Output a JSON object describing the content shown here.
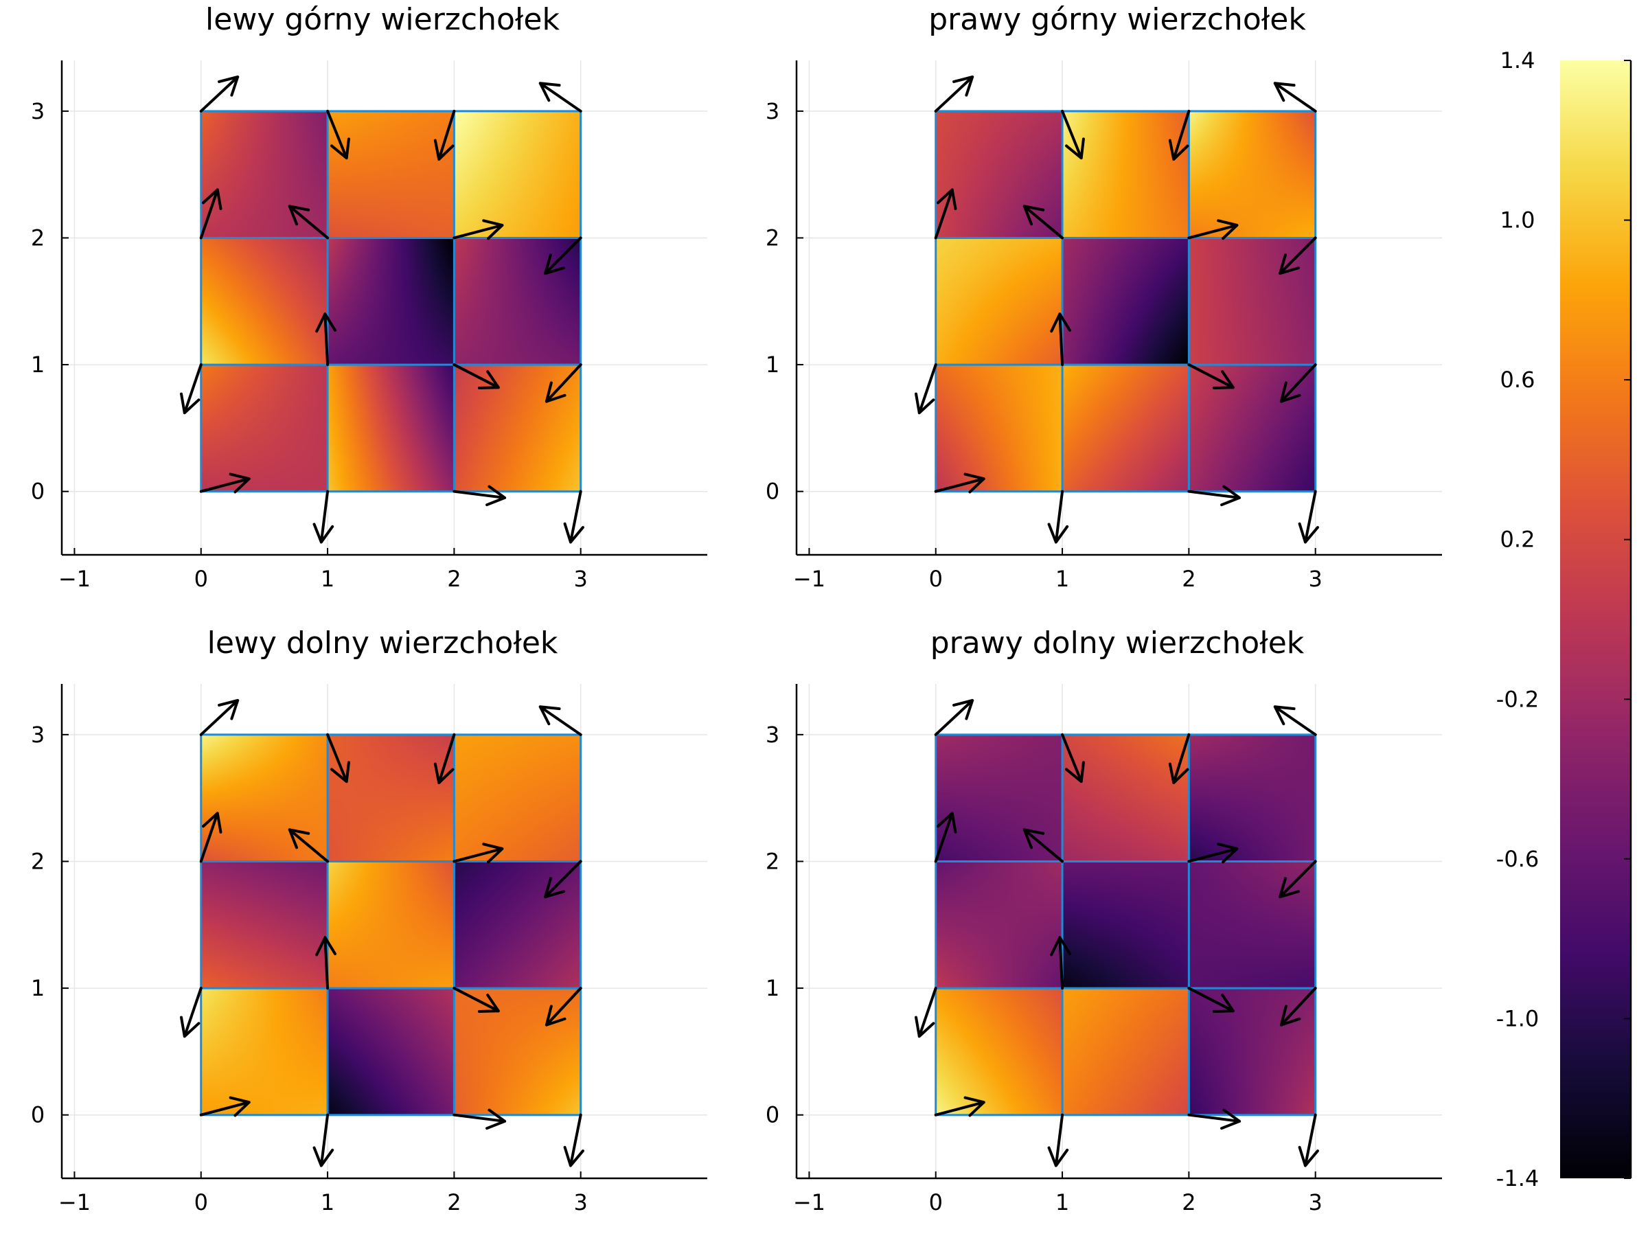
{
  "chart_data": [
    {
      "type": "heatmap",
      "title": "lewy górny wierzchołek",
      "xlabel": "",
      "ylabel": "",
      "xlim": [
        -1.1,
        4
      ],
      "ylim": [
        -0.5,
        3.4
      ],
      "xticks": [
        -1,
        0,
        1,
        2,
        3
      ],
      "yticks": [
        0,
        1,
        2,
        3
      ],
      "xtick_labels": [
        "−1",
        "0",
        "1",
        "2",
        "3"
      ],
      "ytick_labels": [
        "0",
        "1",
        "2",
        "3"
      ],
      "grid": true,
      "corners": [
        [
          [
            0.0,
            0.0,
            0.55,
            0.0
          ],
          [
            1.0,
            -0.3,
            0.8,
            -0.9
          ],
          [
            0.3,
            1.0,
            0.1,
            0.7
          ]
        ],
        [
          [
            1.2,
            0.3,
            0.5,
            -0.1
          ],
          [
            -0.6,
            -0.9,
            0.0,
            -1.4
          ],
          [
            -0.3,
            -0.5,
            0.0,
            -1.0
          ]
        ],
        [
          [
            0.0,
            -0.2,
            0.4,
            -0.4
          ],
          [
            0.3,
            0.4,
            0.8,
            0.6
          ],
          [
            1.1,
            0.8,
            1.4,
            0.9
          ]
        ]
      ]
    },
    {
      "type": "heatmap",
      "title": "prawy górny wierzchołek",
      "xlabel": "",
      "ylabel": "",
      "xlim": [
        -1.1,
        4
      ],
      "ylim": [
        -0.5,
        3.4
      ],
      "xticks": [
        -1,
        0,
        1,
        2,
        3
      ],
      "yticks": [
        0,
        1,
        2,
        3
      ],
      "xtick_labels": [
        "−1",
        "0",
        "1",
        "2",
        "3"
      ],
      "ytick_labels": [
        "0",
        "1",
        "2",
        "3"
      ],
      "grid": true,
      "corners": [
        [
          [
            0.0,
            0.9,
            0.5,
            0.9
          ],
          [
            0.4,
            -0.2,
            0.9,
            0.3
          ],
          [
            -0.2,
            -0.9,
            0.1,
            -0.5
          ]
        ],
        [
          [
            0.9,
            0.4,
            1.1,
            0.9
          ],
          [
            -0.4,
            -1.4,
            -0.2,
            -0.8
          ],
          [
            0.1,
            -0.3,
            0.1,
            -0.4
          ]
        ],
        [
          [
            0.1,
            -0.5,
            0.2,
            -0.1
          ],
          [
            1.0,
            0.6,
            1.3,
            0.4
          ],
          [
            0.6,
            0.9,
            1.3,
            0.3
          ]
        ]
      ]
    },
    {
      "type": "heatmap",
      "title": "lewy dolny wierzchołek",
      "xlabel": "",
      "ylabel": "",
      "xlim": [
        -1.1,
        4
      ],
      "ylim": [
        -0.5,
        3.4
      ],
      "xticks": [
        -1,
        0,
        1,
        2,
        3
      ],
      "yticks": [
        0,
        1,
        2,
        3
      ],
      "xtick_labels": [
        "−1",
        "0",
        "1",
        "2",
        "3"
      ],
      "ytick_labels": [
        "0",
        "1",
        "2",
        "3"
      ],
      "grid": true,
      "corners": [
        [
          [
            0.8,
            0.9,
            1.2,
            0.6
          ],
          [
            -1.3,
            -0.5,
            -0.6,
            -0.1
          ],
          [
            0.4,
            1.0,
            0.5,
            0.5
          ]
        ],
        [
          [
            0.4,
            0.1,
            -0.3,
            -0.5
          ],
          [
            0.6,
            0.8,
            1.1,
            0.3
          ],
          [
            -0.6,
            -0.1,
            -1.0,
            -0.6
          ]
        ],
        [
          [
            0.3,
            0.6,
            1.3,
            0.7
          ],
          [
            0.3,
            0.6,
            0.4,
            0.1
          ],
          [
            0.6,
            0.4,
            0.8,
            0.7
          ]
        ]
      ]
    },
    {
      "type": "heatmap",
      "title": "prawy dolny wierzchołek",
      "xlabel": "",
      "ylabel": "",
      "xlim": [
        -1.1,
        4
      ],
      "ylim": [
        -0.5,
        3.4
      ],
      "xticks": [
        -1,
        0,
        1,
        2,
        3
      ],
      "yticks": [
        0,
        1,
        2,
        3
      ],
      "xtick_labels": [
        "−1",
        "0",
        "1",
        "2",
        "3"
      ],
      "ytick_labels": [
        "0",
        "1",
        "2",
        "3"
      ],
      "grid": true,
      "corners": [
        [
          [
            1.3,
            0.6,
            0.8,
            0.3
          ],
          [
            0.6,
            0.2,
            0.8,
            0.5
          ],
          [
            -0.9,
            -0.1,
            -0.6,
            -0.4
          ]
        ],
        [
          [
            0.0,
            -0.6,
            -0.6,
            -0.2
          ],
          [
            -1.3,
            -0.9,
            -0.6,
            -0.6
          ],
          [
            -0.7,
            -0.8,
            -0.6,
            -0.3
          ]
        ],
        [
          [
            -0.8,
            -0.5,
            -0.2,
            -0.4
          ],
          [
            -0.2,
            0.0,
            0.2,
            0.5
          ],
          [
            -1.0,
            -0.5,
            -0.2,
            -0.5
          ]
        ]
      ]
    }
  ],
  "vectors": [
    {
      "x": 0,
      "y": 0,
      "dx": 0.38,
      "dy": 0.1
    },
    {
      "x": 1,
      "y": 0,
      "dx": -0.05,
      "dy": -0.4
    },
    {
      "x": 2,
      "y": 0,
      "dx": 0.4,
      "dy": -0.05
    },
    {
      "x": 3,
      "y": 0,
      "dx": -0.08,
      "dy": -0.4
    },
    {
      "x": 0,
      "y": 1,
      "dx": -0.13,
      "dy": -0.38
    },
    {
      "x": 1,
      "y": 1,
      "dx": -0.02,
      "dy": 0.4
    },
    {
      "x": 2,
      "y": 1,
      "dx": 0.35,
      "dy": -0.18
    },
    {
      "x": 3,
      "y": 1,
      "dx": -0.27,
      "dy": -0.29
    },
    {
      "x": 0,
      "y": 2,
      "dx": 0.13,
      "dy": 0.38
    },
    {
      "x": 1,
      "y": 2,
      "dx": -0.3,
      "dy": 0.25
    },
    {
      "x": 2,
      "y": 2,
      "dx": 0.38,
      "dy": 0.1
    },
    {
      "x": 3,
      "y": 2,
      "dx": -0.28,
      "dy": -0.28
    },
    {
      "x": 0,
      "y": 3,
      "dx": 0.29,
      "dy": 0.27
    },
    {
      "x": 1,
      "y": 3,
      "dx": 0.15,
      "dy": -0.37
    },
    {
      "x": 2,
      "y": 3,
      "dx": -0.12,
      "dy": -0.38
    },
    {
      "x": 3,
      "y": 3,
      "dx": -0.32,
      "dy": 0.22
    }
  ],
  "colorbar": {
    "colormap": "inferno",
    "range": [
      -1.4,
      1.4
    ],
    "ticks": [
      1.4,
      1.0,
      0.6,
      0.2,
      -0.2,
      -0.6,
      -1.0,
      -1.4
    ],
    "tick_labels": [
      "1.4",
      "1.0",
      "0.6",
      "0.2",
      "-0.2",
      "-0.6",
      "-1.0",
      "-1.4"
    ]
  },
  "colors": {
    "cell_edge": "#1f8ad6",
    "arrow": "#000000",
    "grid": "#e6e6e6",
    "axis": "#000000"
  }
}
